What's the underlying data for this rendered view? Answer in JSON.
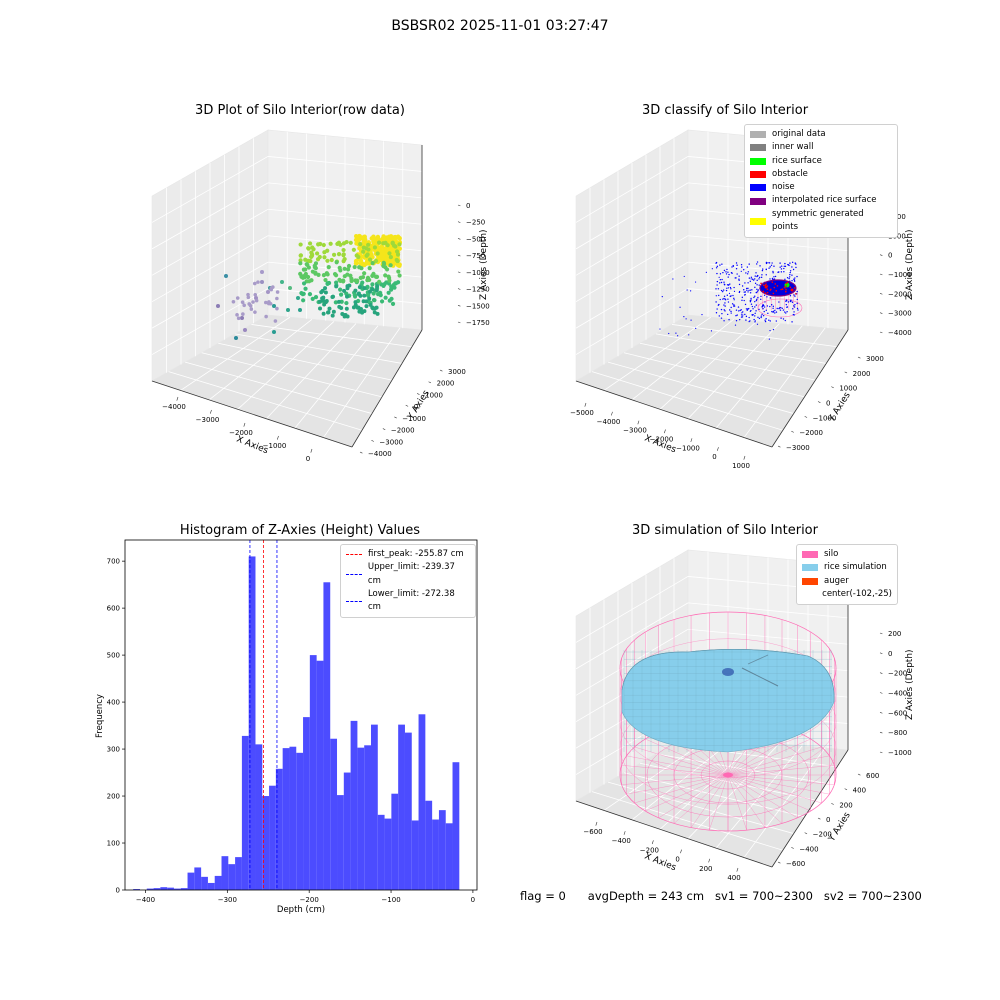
{
  "suptitle": "BSBSR02 2025-11-01 03:27:47",
  "colors": {
    "original_data": "#b0b0b0",
    "inner_wall": "#808080",
    "rice_surface": "#00ff00",
    "obstacle": "#ff0000",
    "noise": "#0000ff",
    "interpolated_rice_surface": "#800080",
    "symmetric_generated_points": "#ffff00",
    "silo": "#ff69b4",
    "rice_simulation": "#87ceeb",
    "auger": "#ff4500",
    "hist_bar": "#4c4cff"
  },
  "chart_data": [
    {
      "type": "scatter3d",
      "title": "3D Plot of Silo Interior(row data)",
      "xlabel": "X Axies",
      "ylabel": "Y Axies",
      "zlabel": "Z Axies (Depth)",
      "x_ticks": [
        "−4000",
        "−3000",
        "−2000",
        "−1000",
        "0"
      ],
      "y_ticks": [
        "3000",
        "2000",
        "1000",
        "0",
        "−1000",
        "−2000",
        "−3000",
        "−4000"
      ],
      "z_ticks": [
        "0",
        "−250",
        "−500",
        "−750",
        "−1000",
        "−1250",
        "−1500",
        "−1750"
      ]
    },
    {
      "type": "scatter3d",
      "title": "3D classify of Silo Interior",
      "xlabel": "X Axies",
      "ylabel": "Y Axies",
      "zlabel": "Z Axies (Depth)",
      "x_ticks": [
        "−5000",
        "−4000",
        "−3000",
        "−2000",
        "−1000",
        "0",
        "1000"
      ],
      "y_ticks": [
        "3000",
        "2000",
        "1000",
        "0",
        "−1000",
        "−2000",
        "−3000"
      ],
      "z_ticks": [
        "2000",
        "1000",
        "0",
        "−1000",
        "−2000",
        "−3000",
        "−4000"
      ],
      "legend": [
        "original data",
        "inner wall",
        "rice surface",
        "obstacle",
        "noise",
        "interpolated rice surface",
        "symmetric generated points"
      ]
    },
    {
      "type": "bar",
      "title": "Histogram of Z-Axies (Height) Values",
      "xlabel": "Depth (cm)",
      "ylabel": "Frequency",
      "xlim": [
        -425,
        5
      ],
      "ylim": [
        0,
        745
      ],
      "x_ticks": [
        -400,
        -300,
        -200,
        -100,
        0
      ],
      "x_tick_labels": [
        "−400",
        "−300",
        "−200",
        "−100",
        "0"
      ],
      "y_ticks": [
        0,
        100,
        200,
        300,
        400,
        500,
        600,
        700
      ],
      "bin_start": -415,
      "bin_width": 8.3,
      "values": [
        2,
        0,
        3,
        4,
        6,
        5,
        3,
        4,
        37,
        48,
        28,
        15,
        30,
        72,
        55,
        70,
        328,
        710,
        310,
        200,
        222,
        258,
        302,
        305,
        292,
        368,
        500,
        488,
        655,
        322,
        202,
        250,
        360,
        303,
        308,
        352,
        160,
        152,
        205,
        352,
        335,
        148,
        374,
        190,
        150,
        170,
        142,
        272
      ],
      "vlines": [
        {
          "label": "first_peak: -255.87 cm",
          "x": -255.87,
          "color": "#ff0000"
        },
        {
          "label": "Upper_limit: -239.37 cm",
          "x": -239.37,
          "color": "#0000ff"
        },
        {
          "label": "Lower_limit: -272.38 cm",
          "x": -272.38,
          "color": "#0000ff"
        }
      ]
    },
    {
      "type": "surface3d",
      "title": "3D simulation of Silo Interior",
      "xlabel": "X Axies",
      "ylabel": "Y Axies",
      "zlabel": "Z Axies (Depth)",
      "x_ticks": [
        "−600",
        "−400",
        "−200",
        "0",
        "200",
        "400"
      ],
      "y_ticks": [
        "600",
        "400",
        "200",
        "0",
        "−200",
        "−400",
        "−600"
      ],
      "z_ticks": [
        "200",
        "0",
        "−200",
        "−400",
        "−600",
        "−800",
        "−1000"
      ],
      "legend": [
        "silo",
        "rice simulation",
        "auger",
        "center(-102,-25)"
      ]
    }
  ],
  "status": {
    "flag": "flag = 0",
    "avg_depth": "avgDepth = 243 cm",
    "sv1": "sv1 = 700~2300",
    "sv2": "sv2 = 700~2300"
  }
}
